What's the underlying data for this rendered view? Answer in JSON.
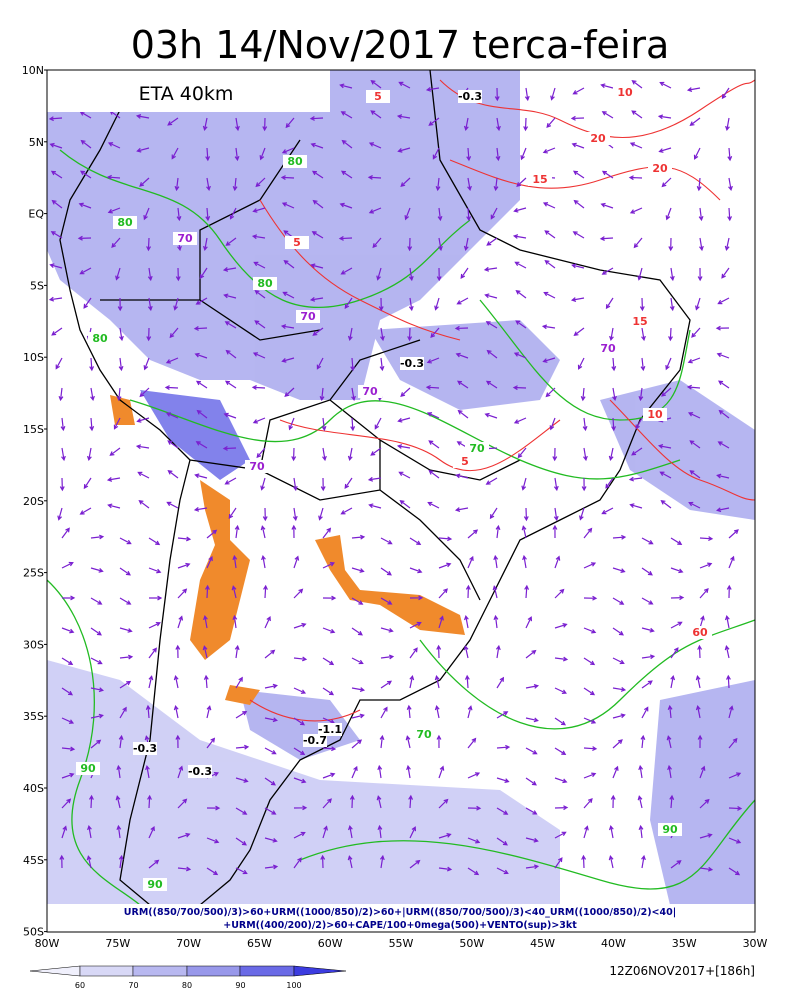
{
  "header": {
    "title": "03h 14/Nov/2017 terca-feira",
    "model": "ETA 40km"
  },
  "lat_labels": [
    "10N",
    "5N",
    "EQ",
    "5S",
    "10S",
    "15S",
    "20S",
    "25S",
    "30S",
    "35S",
    "40S",
    "45S",
    "50S"
  ],
  "lon_labels": [
    "80W",
    "75W",
    "70W",
    "65W",
    "60W",
    "55W",
    "50W",
    "45W",
    "40W",
    "35W",
    "30W"
  ],
  "legend_text": [
    "URM((850/700/500)/3)>60+URM((1000/850)/2)>60+|URM((850/700/500)/3)<40_URM((1000/850)/2)<40|",
    "+URM((400/200)/2)>60+CAPE/100+0mega(500)+VENTO(sup)>3kt"
  ],
  "colorbar_labels": [
    "60",
    "70",
    "80",
    "90",
    "100"
  ],
  "run_info": "12Z06NOV2017+[186h]",
  "contour_labels": [
    "80",
    "80",
    "80",
    "70",
    "70",
    "70",
    "70",
    "70",
    "70",
    "-0.3",
    "-0.3",
    "-0.3",
    "-0.3",
    "5",
    "5",
    "5",
    "10",
    "10",
    "15",
    "15",
    "20",
    "20",
    "80",
    "90",
    "90",
    "90",
    "70",
    "60",
    "-0.7",
    "-1.1"
  ]
}
